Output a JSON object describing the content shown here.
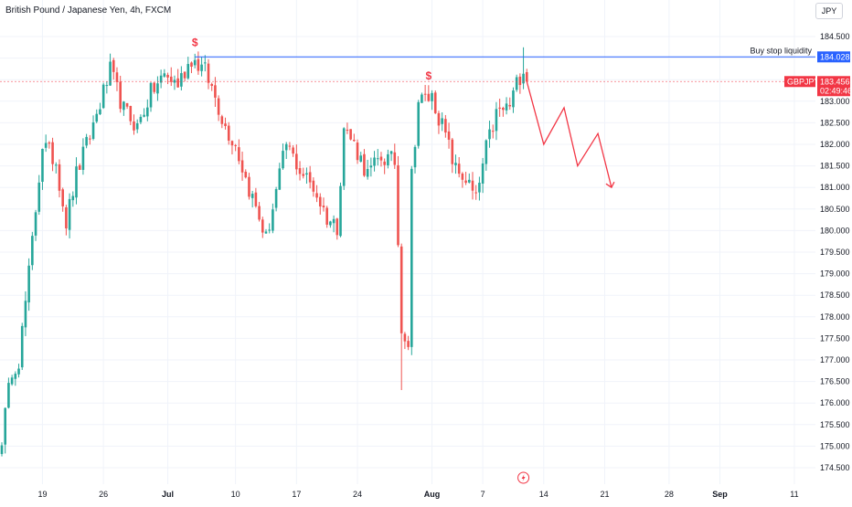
{
  "header": {
    "title": "British Pound / Japanese Yen, 4h, FXCM",
    "currency": "JPY"
  },
  "colors": {
    "up": "#26a69a",
    "down": "#ef5350",
    "level_line": "#2962ff",
    "price_tag": "#f23645",
    "projection": "#f23645",
    "grid": "#f0f3fa",
    "axis_text": "#131722"
  },
  "chart_data": {
    "type": "candlestick",
    "symbol": "GBPJPY",
    "timeframe": "4h",
    "ylim": [
      174.3,
      184.85
    ],
    "y_ticks": [
      174.5,
      175.0,
      175.5,
      176.0,
      176.5,
      177.0,
      177.5,
      178.0,
      178.5,
      179.0,
      179.5,
      180.0,
      180.5,
      181.0,
      181.5,
      182.0,
      182.5,
      183.0,
      183.5,
      184.0,
      184.5
    ],
    "x_ticks": [
      {
        "label": "19",
        "bar": 12
      },
      {
        "label": "26",
        "bar": 30
      },
      {
        "label": "Jul",
        "bar": 49
      },
      {
        "label": "10",
        "bar": 69
      },
      {
        "label": "17",
        "bar": 87
      },
      {
        "label": "24",
        "bar": 105
      },
      {
        "label": "Aug",
        "bar": 127
      },
      {
        "label": "7",
        "bar": 142
      },
      {
        "label": "14",
        "bar": 160
      },
      {
        "label": "21",
        "bar": 178
      },
      {
        "label": "28",
        "bar": 197
      },
      {
        "label": "Sep",
        "bar": 212
      },
      {
        "label": "11",
        "bar": 234
      }
    ],
    "bars_span": 236,
    "waypoints": [
      {
        "bar": 0,
        "price": 175.2
      },
      {
        "bar": 3,
        "price": 176.8
      },
      {
        "bar": 5,
        "price": 177.0
      },
      {
        "bar": 8,
        "price": 179.0
      },
      {
        "bar": 10,
        "price": 180.5
      },
      {
        "bar": 12,
        "price": 182.0
      },
      {
        "bar": 16,
        "price": 181.6
      },
      {
        "bar": 19,
        "price": 180.2
      },
      {
        "bar": 22,
        "price": 181.3
      },
      {
        "bar": 26,
        "price": 182.2
      },
      {
        "bar": 30,
        "price": 183.2
      },
      {
        "bar": 32,
        "price": 183.7
      },
      {
        "bar": 36,
        "price": 182.8
      },
      {
        "bar": 40,
        "price": 182.4
      },
      {
        "bar": 44,
        "price": 183.2
      },
      {
        "bar": 48,
        "price": 183.6
      },
      {
        "bar": 52,
        "price": 183.4
      },
      {
        "bar": 56,
        "price": 184.0
      },
      {
        "bar": 60,
        "price": 183.7
      },
      {
        "bar": 63,
        "price": 183.1
      },
      {
        "bar": 66,
        "price": 182.4
      },
      {
        "bar": 69,
        "price": 182.0
      },
      {
        "bar": 72,
        "price": 181.2
      },
      {
        "bar": 76,
        "price": 180.3
      },
      {
        "bar": 78,
        "price": 179.8
      },
      {
        "bar": 81,
        "price": 180.9
      },
      {
        "bar": 84,
        "price": 182.0
      },
      {
        "bar": 88,
        "price": 181.4
      },
      {
        "bar": 92,
        "price": 181.0
      },
      {
        "bar": 96,
        "price": 180.3
      },
      {
        "bar": 99,
        "price": 180.1
      },
      {
        "bar": 101,
        "price": 182.4
      },
      {
        "bar": 104,
        "price": 182.0
      },
      {
        "bar": 108,
        "price": 181.3
      },
      {
        "bar": 112,
        "price": 181.7
      },
      {
        "bar": 116,
        "price": 181.6
      },
      {
        "bar": 118,
        "price": 177.8
      },
      {
        "bar": 120,
        "price": 177.4
      },
      {
        "bar": 121,
        "price": 181.3
      },
      {
        "bar": 123,
        "price": 183.0
      },
      {
        "bar": 127,
        "price": 183.1
      },
      {
        "bar": 131,
        "price": 182.2
      },
      {
        "bar": 134,
        "price": 181.4
      },
      {
        "bar": 137,
        "price": 181.2
      },
      {
        "bar": 140,
        "price": 180.7
      },
      {
        "bar": 143,
        "price": 181.9
      },
      {
        "bar": 146,
        "price": 182.7
      },
      {
        "bar": 150,
        "price": 182.9
      },
      {
        "bar": 152,
        "price": 183.4
      },
      {
        "bar": 154,
        "price": 183.8
      },
      {
        "bar": 155,
        "price": 183.456
      }
    ],
    "wick_extremes": [
      {
        "bar": 118,
        "low": 176.3
      },
      {
        "bar": 154,
        "high": 184.25
      },
      {
        "bar": 57,
        "high": 184.1
      }
    ],
    "buy_stop_level": 184.028,
    "last_price": 183.456,
    "last_price_label": "183.456",
    "countdown": "02:49:46",
    "level_label": "184.028",
    "symbol_tag": "GBPJPY",
    "annotation_text": "Buy stop liquidity",
    "dollar_markers": [
      {
        "bar": 57,
        "price": 184.28,
        "text": "$"
      },
      {
        "bar": 126,
        "price": 183.5,
        "text": "$"
      }
    ],
    "projection": [
      {
        "bar": 155,
        "price": 183.456
      },
      {
        "bar": 160,
        "price": 182.0
      },
      {
        "bar": 166,
        "price": 182.85
      },
      {
        "bar": 170,
        "price": 181.5
      },
      {
        "bar": 176,
        "price": 182.25
      },
      {
        "bar": 180,
        "price": 181.0
      }
    ],
    "event_marker": {
      "bar": 154,
      "icon": "lightning-icon"
    }
  }
}
